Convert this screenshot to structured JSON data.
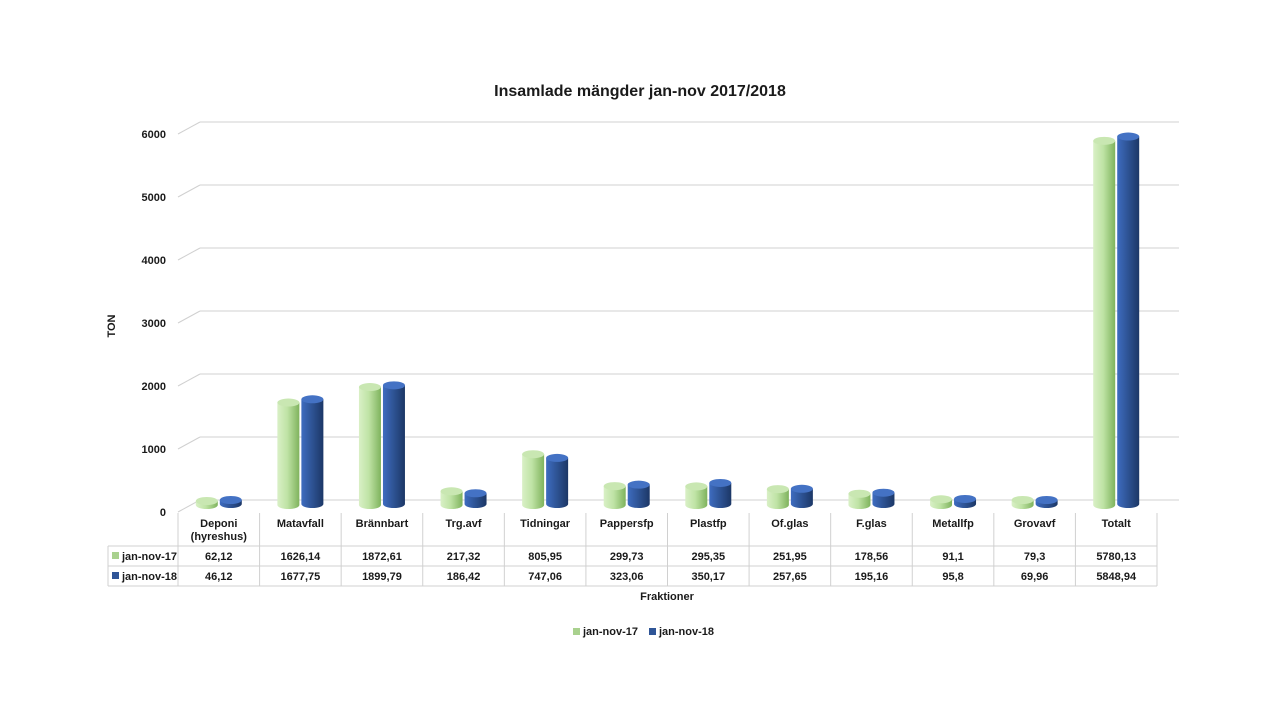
{
  "chart_data": {
    "type": "bar",
    "title": "Insamlade mängder jan-nov 2017/2018",
    "xlabel": "Fraktioner",
    "ylabel": "TON",
    "ylim": [
      0,
      6000
    ],
    "yticks": [
      "0",
      "1000",
      "2000",
      "3000",
      "4000",
      "5000",
      "6000"
    ],
    "grid": true,
    "legend_position": "bottom",
    "categories": [
      [
        "Deponi",
        "(hyreshus)"
      ],
      [
        "Matavfall"
      ],
      [
        "Brännbart"
      ],
      [
        "Trg.avf"
      ],
      [
        "Tidningar"
      ],
      [
        "Pappersfp"
      ],
      [
        "Plastfp"
      ],
      [
        "Of.glas"
      ],
      [
        "F.glas"
      ],
      [
        "Metallfp"
      ],
      [
        "Grovavf"
      ],
      [
        "Totalt"
      ]
    ],
    "series": [
      {
        "name": "jan-nov-17",
        "color": "#a9d18e",
        "values": [
          62.12,
          1626.14,
          1872.61,
          217.32,
          805.95,
          299.73,
          295.35,
          251.95,
          178.56,
          91.1,
          79.3,
          5780.13
        ],
        "labels": [
          "62,12",
          "1626,14",
          "1872,61",
          "217,32",
          "805,95",
          "299,73",
          "295,35",
          "251,95",
          "178,56",
          "91,1",
          "79,3",
          "5780,13"
        ]
      },
      {
        "name": "jan-nov-18",
        "color": "#2f5597",
        "values": [
          46.12,
          1677.75,
          1899.79,
          186.42,
          747.06,
          323.06,
          350.17,
          257.65,
          195.16,
          95.8,
          69.96,
          5848.94
        ],
        "labels": [
          "46,12",
          "1677,75",
          "1899,79",
          "186,42",
          "747,06",
          "323,06",
          "350,17",
          "257,65",
          "195,16",
          "95,8",
          "69,96",
          "5848,94"
        ]
      }
    ]
  }
}
